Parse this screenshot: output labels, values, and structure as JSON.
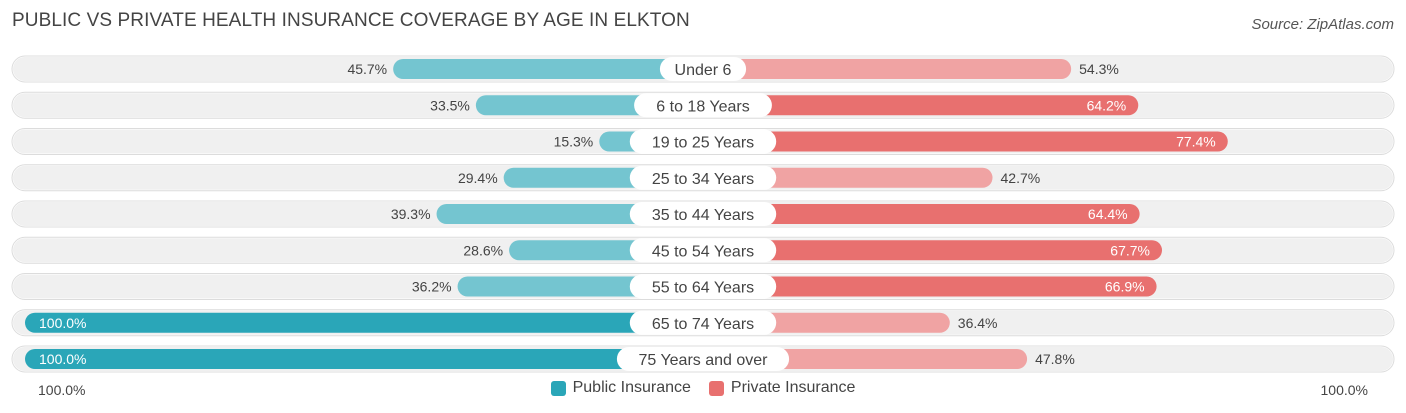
{
  "title": "PUBLIC VS PRIVATE HEALTH INSURANCE COVERAGE BY AGE IN ELKTON",
  "source": "Source: ZipAtlas.com",
  "colors": {
    "public_light": "#74c5d0",
    "public_dark": "#2aa6b8",
    "private_light": "#f0a3a3",
    "private_dark": "#e8706f",
    "row_bg": "#f0f0f0"
  },
  "legend": {
    "public": "Public Insurance",
    "private": "Private Insurance"
  },
  "axis": {
    "left": "100.0%",
    "right": "100.0%"
  },
  "chart_data": {
    "type": "bar",
    "orientation": "horizontal-diverging",
    "title": "PUBLIC VS PRIVATE HEALTH INSURANCE COVERAGE BY AGE IN ELKTON",
    "categories": [
      "Under 6",
      "6 to 18 Years",
      "19 to 25 Years",
      "25 to 34 Years",
      "35 to 44 Years",
      "45 to 54 Years",
      "55 to 64 Years",
      "65 to 74 Years",
      "75 Years and over"
    ],
    "series": [
      {
        "name": "Public Insurance",
        "values": [
          45.7,
          33.5,
          15.3,
          29.4,
          39.3,
          28.6,
          36.2,
          100.0,
          100.0
        ],
        "labels": [
          "45.7%",
          "33.5%",
          "15.3%",
          "29.4%",
          "39.3%",
          "28.6%",
          "36.2%",
          "100.0%",
          "100.0%"
        ]
      },
      {
        "name": "Private Insurance",
        "values": [
          54.3,
          64.2,
          77.4,
          42.7,
          64.4,
          67.7,
          66.9,
          36.4,
          47.8
        ],
        "labels": [
          "54.3%",
          "64.2%",
          "77.4%",
          "42.7%",
          "64.4%",
          "67.7%",
          "66.9%",
          "36.4%",
          "47.8%"
        ]
      }
    ],
    "xlim": [
      0,
      100
    ],
    "legend_position": "bottom-center"
  }
}
